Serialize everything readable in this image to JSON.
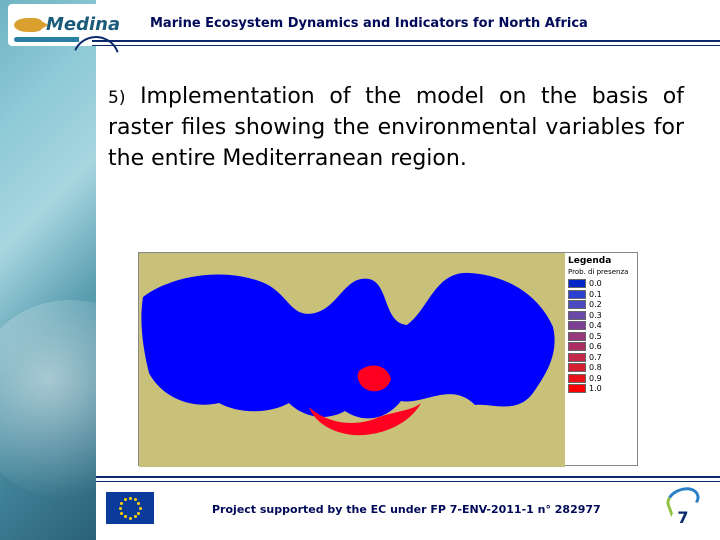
{
  "logo": {
    "text": "Medina"
  },
  "header": {
    "title": "Marine Ecosystem Dynamics and Indicators for North Africa"
  },
  "main": {
    "item_number": "5)",
    "body": "Implementation of the model on the basis of raster files showing the environmental variables for the entire Mediterranean region."
  },
  "map": {
    "land_color": "#c9c17a",
    "sea_color": "#0000ff",
    "hotspot_color": "#ff0020",
    "border_color": "#888888"
  },
  "legend": {
    "title": "Legenda",
    "subtitle": "Prob. di presenza",
    "items": [
      {
        "label": "0.0",
        "color": "#0428c6"
      },
      {
        "label": "0.1",
        "color": "#2b3fd0"
      },
      {
        "label": "0.2",
        "color": "#4a4bc0"
      },
      {
        "label": "0.3",
        "color": "#6a4aa8"
      },
      {
        "label": "0.4",
        "color": "#7d3f94"
      },
      {
        "label": "0.5",
        "color": "#963a7c"
      },
      {
        "label": "0.6",
        "color": "#aa2f60"
      },
      {
        "label": "0.7",
        "color": "#c2284a"
      },
      {
        "label": "0.8",
        "color": "#d61e32"
      },
      {
        "label": "0.9",
        "color": "#ea1218"
      },
      {
        "label": "1.0",
        "color": "#ff0000"
      }
    ]
  },
  "footer": {
    "text": "Project supported by the EC under FP 7-ENV-2011-1 n° 282977",
    "fp7": "7"
  },
  "colors": {
    "heading": "#000a59",
    "rule": "#0a2a6b",
    "eu_flag_bg": "#0a3b9b",
    "eu_star": "#ffd400"
  }
}
